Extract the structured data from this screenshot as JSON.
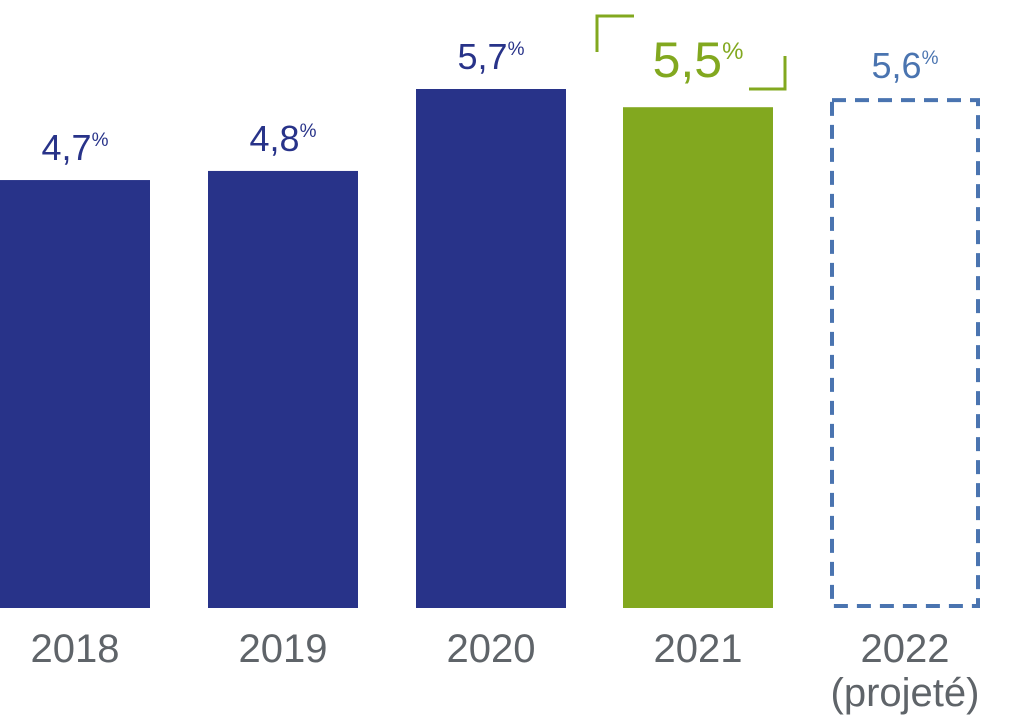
{
  "chart_data": {
    "type": "bar",
    "categories": [
      "2018",
      "2019",
      "2020",
      "2021",
      "2022"
    ],
    "category_sublabels": [
      "",
      "",
      "",
      "",
      "(projeté)"
    ],
    "values": [
      4.7,
      4.8,
      5.7,
      5.5,
      5.6
    ],
    "value_labels": [
      "4,7",
      "4,8",
      "5,7",
      "5,5",
      "5,6"
    ],
    "unit": "%",
    "bar_styles": [
      "solid",
      "solid",
      "solid",
      "highlight",
      "dashed-projection"
    ],
    "colors": {
      "solid": "#283389",
      "highlight": "#82a81f",
      "projection": "#4a74b0",
      "tick_text": "#5f6469"
    },
    "highlight_bracket_index": 3,
    "title": "",
    "xlabel": "",
    "ylabel": "",
    "ylim": [
      0,
      5.7
    ],
    "grid": false,
    "legend": "none"
  }
}
